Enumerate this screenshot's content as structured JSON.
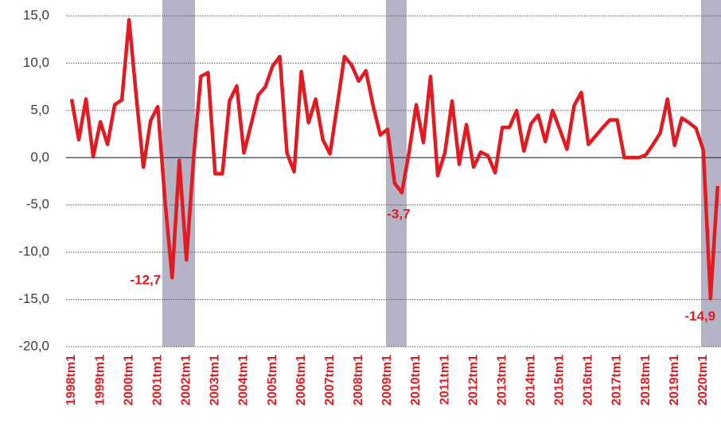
{
  "chart_data": {
    "type": "line",
    "categories": [
      "1998tm1",
      null,
      null,
      null,
      "1999tm1",
      null,
      null,
      null,
      "2000tm1",
      null,
      null,
      null,
      "2001tm1",
      null,
      null,
      null,
      "2002tm1",
      null,
      null,
      null,
      "2003tm1",
      null,
      null,
      null,
      "2004tm1",
      null,
      null,
      null,
      "2005tm1",
      null,
      null,
      null,
      "2006tm1",
      null,
      null,
      null,
      "2007tm1",
      null,
      null,
      null,
      "2008tm1",
      null,
      null,
      null,
      "2009tm1",
      null,
      null,
      null,
      "2010tm1",
      null,
      null,
      null,
      "2011tm1",
      null,
      null,
      null,
      "2012tm1",
      null,
      null,
      null,
      "2013tm1",
      null,
      null,
      null,
      "2014tm1",
      null,
      null,
      null,
      "2015tm1",
      null,
      null,
      null,
      "2016tm1",
      null,
      null,
      null,
      "2017tm1",
      null,
      null,
      null,
      "2018tm1",
      null,
      null,
      null,
      "2019tm1",
      null,
      null,
      null,
      "2020tm1",
      null,
      null
    ],
    "values": [
      6.2,
      1.9,
      6.2,
      0.1,
      3.8,
      1.4,
      5.6,
      6.1,
      14.6,
      6.5,
      -1.0,
      3.9,
      5.4,
      -4.5,
      -12.7,
      -0.3,
      -10.8,
      0.0,
      8.6,
      9.0,
      -1.7,
      -1.7,
      6.0,
      7.6,
      0.5,
      3.5,
      6.6,
      7.5,
      9.7,
      10.7,
      0.5,
      -1.5,
      9.1,
      3.7,
      6.2,
      1.9,
      0.4,
      5.5,
      10.7,
      9.8,
      8.1,
      9.2,
      5.5,
      2.4,
      3.0,
      -2.7,
      -3.7,
      0.5,
      5.6,
      1.6,
      8.6,
      -1.9,
      0.5,
      6.0,
      -0.7,
      3.5,
      -1.0,
      0.6,
      0.2,
      -1.6,
      3.2,
      3.2,
      5.0,
      0.7,
      3.6,
      4.5,
      1.7,
      5.0,
      3.0,
      0.9,
      5.5,
      6.9,
      1.4,
      2.3,
      3.2,
      4.0,
      4.0,
      0.0,
      0.0,
      0.0,
      0.3,
      1.4,
      2.6,
      6.2,
      1.3,
      4.2,
      3.7,
      3.1,
      0.8,
      -14.9,
      -3.0
    ],
    "value_labels": [
      null,
      null,
      null,
      null,
      null,
      null,
      null,
      null,
      null,
      null,
      null,
      null,
      null,
      null,
      "-12,7",
      null,
      null,
      null,
      null,
      null,
      null,
      null,
      null,
      null,
      null,
      null,
      null,
      null,
      null,
      null,
      null,
      null,
      null,
      null,
      null,
      null,
      null,
      null,
      null,
      null,
      null,
      null,
      null,
      null,
      null,
      null,
      "-3,7",
      null,
      null,
      null,
      null,
      null,
      null,
      null,
      null,
      null,
      null,
      null,
      null,
      null,
      null,
      null,
      null,
      null,
      null,
      null,
      null,
      null,
      null,
      null,
      null,
      null,
      null,
      null,
      null,
      null,
      null,
      null,
      null,
      null,
      null,
      null,
      null,
      null,
      null,
      null,
      null,
      null,
      null,
      "-14,9",
      null
    ],
    "color": "#e11b22",
    "ylim": [
      -20,
      15
    ],
    "yticks": [
      {
        "value": -20,
        "label": "-20,0"
      },
      {
        "value": -15,
        "label": "-15,0"
      },
      {
        "value": -10,
        "label": "-10,0"
      },
      {
        "value": -5,
        "label": "-5,0"
      },
      {
        "value": 0,
        "label": "0,0"
      },
      {
        "value": 5,
        "label": "5,0"
      },
      {
        "value": 10,
        "label": "10,0"
      },
      {
        "value": 15,
        "label": "15,0"
      }
    ],
    "grid": true
  }
}
